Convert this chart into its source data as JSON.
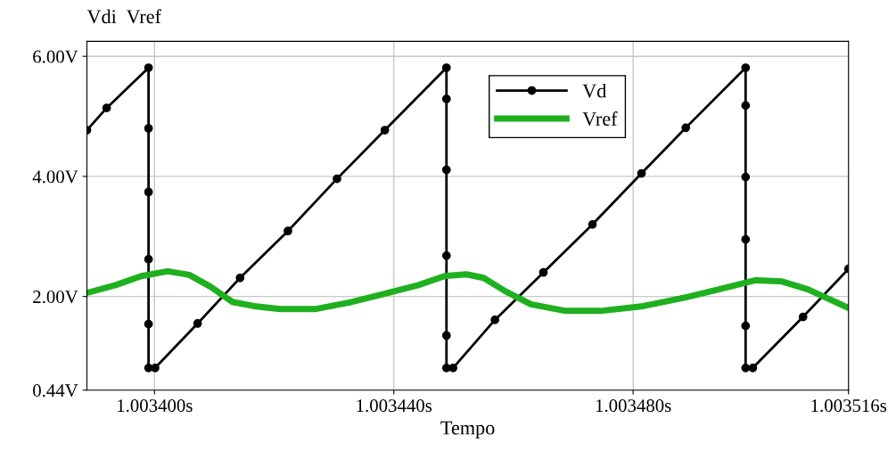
{
  "chart_data": {
    "type": "line",
    "ylabel": "Vdi  Vref",
    "xlabel": "Tempo",
    "xlim": [
      1.0033887,
      1.003516
    ],
    "ylim": [
      0.44,
      6.25
    ],
    "xticks": [
      {
        "value": 1.0034,
        "label": "1.003400s"
      },
      {
        "value": 1.00344,
        "label": "1.003440s"
      },
      {
        "value": 1.00348,
        "label": "1.003480s"
      },
      {
        "value": 1.003516,
        "label": "1.003516s"
      }
    ],
    "yticks": [
      {
        "value": 0.44,
        "label": "0.44V"
      },
      {
        "value": 2,
        "label": "2.00V"
      },
      {
        "value": 4,
        "label": "4.00V"
      },
      {
        "value": 6,
        "label": "6.00V"
      }
    ],
    "grid": true,
    "legend": "top right",
    "series": [
      {
        "name": "Vd",
        "color": "#000000",
        "marker": "circle",
        "x": [
          1.0033887,
          1.003392,
          1.003399,
          1.003399,
          1.003399,
          1.003399,
          1.003399,
          1.003399,
          1.0034001,
          1.0034072,
          1.0034143,
          1.0034223,
          1.0034305,
          1.0034385,
          1.0034488,
          1.0034488,
          1.0034488,
          1.0034488,
          1.0034488,
          1.0034488,
          1.0034499,
          1.0034569,
          1.003465,
          1.0034732,
          1.0034814,
          1.0034888,
          1.0034988,
          1.0034988,
          1.0034988,
          1.0034988,
          1.0034988,
          1.0034988,
          1.0035,
          1.0035084,
          1.003516
        ],
        "values": [
          4.77,
          5.14,
          5.81,
          4.8,
          3.74,
          2.62,
          1.54,
          0.81,
          0.81,
          1.55,
          2.31,
          3.09,
          3.96,
          4.77,
          5.81,
          5.29,
          4.11,
          2.68,
          1.35,
          0.81,
          0.81,
          1.61,
          2.4,
          3.2,
          4.05,
          4.81,
          5.81,
          5.18,
          3.99,
          2.95,
          1.51,
          0.81,
          0.81,
          1.66,
          2.46
        ]
      },
      {
        "name": "Vref",
        "color": "#1fb01f",
        "marker": "none",
        "x": [
          1.0033887,
          1.0033935,
          1.0033978,
          1.0034022,
          1.0034058,
          1.0034094,
          1.003413,
          1.0034166,
          1.003421,
          1.0034268,
          1.0034326,
          1.0034383,
          1.0034441,
          1.0034485,
          1.0034521,
          1.003455,
          1.0034586,
          1.0034629,
          1.0034687,
          1.0034745,
          1.0034817,
          1.003489,
          1.0034948,
          1.0035005,
          1.0035049,
          1.0035092,
          1.003516
        ],
        "values": [
          2.06,
          2.19,
          2.34,
          2.42,
          2.36,
          2.16,
          1.91,
          1.84,
          1.79,
          1.79,
          1.9,
          2.04,
          2.19,
          2.34,
          2.37,
          2.31,
          2.09,
          1.87,
          1.76,
          1.76,
          1.84,
          1.99,
          2.13,
          2.27,
          2.25,
          2.12,
          1.81
        ]
      }
    ]
  }
}
